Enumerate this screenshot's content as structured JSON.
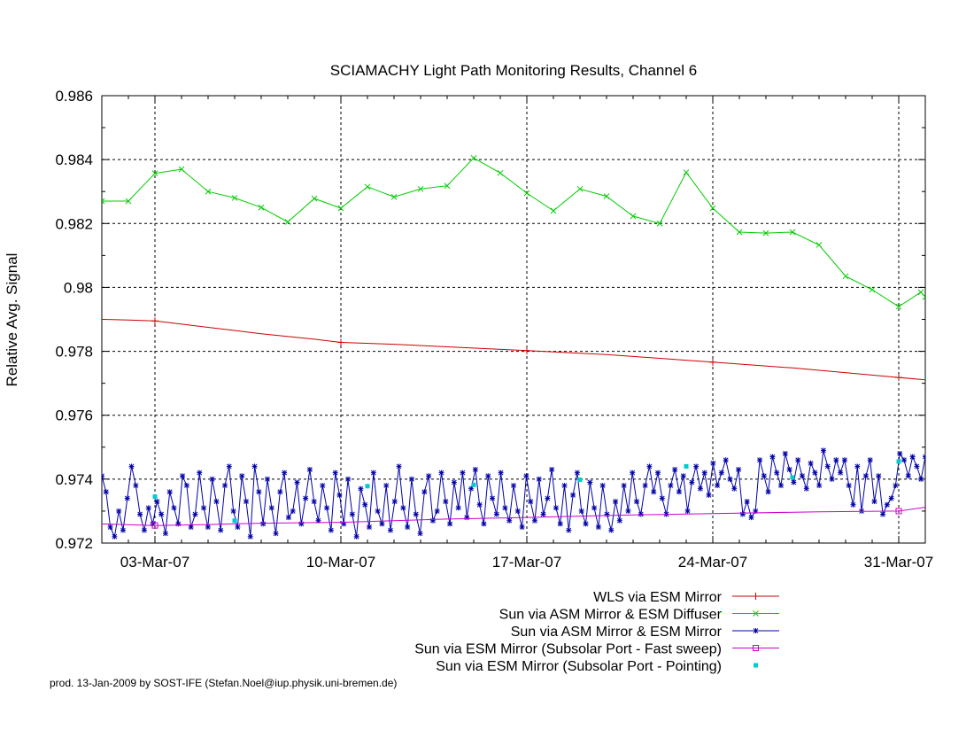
{
  "chart_data": {
    "type": "line",
    "title": "SCIAMACHY Light Path Monitoring Results, Channel 6",
    "xlabel": "",
    "ylabel": "Relative Avg. Signal",
    "xlim": [
      "2007-03-01",
      "2007-04-01"
    ],
    "ylim": [
      0.972,
      0.986
    ],
    "yticks": [
      "0.972",
      "0.974",
      "0.976",
      "0.978",
      "0.98",
      "0.982",
      "0.984",
      "0.986"
    ],
    "xticks": [
      {
        "date": "2007-03-03",
        "label": "03-Mar-07"
      },
      {
        "date": "2007-03-10",
        "label": "10-Mar-07"
      },
      {
        "date": "2007-03-17",
        "label": "17-Mar-07"
      },
      {
        "date": "2007-03-24",
        "label": "24-Mar-07"
      },
      {
        "date": "2007-03-31",
        "label": "31-Mar-07"
      }
    ],
    "grid": true,
    "legend_position": "bottom-right",
    "series": [
      {
        "name": "WLS via ESM Mirror",
        "color": "#cc0000",
        "marker": "plus",
        "points": [
          [
            "2007-03-01",
            0.979
          ],
          [
            "2007-03-02",
            0.97898
          ],
          [
            "2007-03-03",
            0.97895
          ],
          [
            "2007-03-05",
            0.97875
          ],
          [
            "2007-03-07",
            0.97855
          ],
          [
            "2007-03-09",
            0.97838
          ],
          [
            "2007-03-10",
            0.97828
          ],
          [
            "2007-03-12",
            0.97822
          ],
          [
            "2007-03-14",
            0.97814
          ],
          [
            "2007-03-17",
            0.97802
          ],
          [
            "2007-03-20",
            0.9779
          ],
          [
            "2007-03-24",
            0.97766
          ],
          [
            "2007-03-27",
            0.97748
          ],
          [
            "2007-03-31",
            0.97718
          ],
          [
            "2007-04-01",
            0.97711
          ]
        ],
        "marker_dates": [
          "2007-03-03",
          "2007-03-10",
          "2007-03-17",
          "2007-03-24",
          "2007-03-31"
        ]
      },
      {
        "name": "Sun via ASM Mirror & ESM Diffuser",
        "color": "#00cc00",
        "marker": "cross",
        "points": [
          [
            "2007-03-01",
            0.9827
          ],
          [
            "2007-03-02",
            0.9827
          ],
          [
            "2007-03-03",
            0.98357
          ],
          [
            "2007-03-04",
            0.9837
          ],
          [
            "2007-03-05",
            0.983
          ],
          [
            "2007-03-06",
            0.9828
          ],
          [
            "2007-03-07",
            0.9825
          ],
          [
            "2007-03-08",
            0.98205
          ],
          [
            "2007-03-09",
            0.98278
          ],
          [
            "2007-03-10",
            0.98248
          ],
          [
            "2007-03-11",
            0.98315
          ],
          [
            "2007-03-12",
            0.98283
          ],
          [
            "2007-03-13",
            0.98308
          ],
          [
            "2007-03-14",
            0.98318
          ],
          [
            "2007-03-15",
            0.98405
          ],
          [
            "2007-03-16",
            0.98358
          ],
          [
            "2007-03-17",
            0.98295
          ],
          [
            "2007-03-18",
            0.9824
          ],
          [
            "2007-03-19",
            0.98308
          ],
          [
            "2007-03-20",
            0.98285
          ],
          [
            "2007-03-21",
            0.98223
          ],
          [
            "2007-03-22",
            0.982
          ],
          [
            "2007-03-23",
            0.9836
          ],
          [
            "2007-03-24",
            0.98248
          ],
          [
            "2007-03-25",
            0.98173
          ],
          [
            "2007-03-26",
            0.9817
          ],
          [
            "2007-03-27",
            0.98173
          ],
          [
            "2007-03-28",
            0.98133
          ],
          [
            "2007-03-29",
            0.98035
          ],
          [
            "2007-03-30",
            0.97993
          ],
          [
            "2007-03-31",
            0.9794
          ],
          [
            "2007-03-31T20:00",
            0.97985
          ],
          [
            "2007-04-01",
            0.9797
          ]
        ]
      },
      {
        "name": "Sun via ASM Mirror & ESM Mirror",
        "color": "#0000aa",
        "marker": "star",
        "x_start": "2007-03-01",
        "x_end": "2007-04-01",
        "values": [
          0.9741,
          0.9736,
          0.9725,
          0.9722,
          0.973,
          0.9724,
          0.9734,
          0.9744,
          0.9738,
          0.9729,
          0.9724,
          0.9731,
          0.9726,
          0.9733,
          0.9729,
          0.9723,
          0.9736,
          0.9731,
          0.9726,
          0.9741,
          0.9738,
          0.9725,
          0.9729,
          0.9742,
          0.9731,
          0.9725,
          0.974,
          0.9733,
          0.9724,
          0.9738,
          0.9744,
          0.973,
          0.9725,
          0.9741,
          0.9733,
          0.9722,
          0.9744,
          0.9736,
          0.9726,
          0.974,
          0.9731,
          0.9723,
          0.9736,
          0.9742,
          0.9728,
          0.973,
          0.9739,
          0.9726,
          0.9734,
          0.9743,
          0.9733,
          0.9727,
          0.9738,
          0.9731,
          0.9724,
          0.9742,
          0.9735,
          0.9726,
          0.974,
          0.9729,
          0.9722,
          0.9737,
          0.9732,
          0.9725,
          0.9742,
          0.973,
          0.9726,
          0.9738,
          0.9724,
          0.9733,
          0.9744,
          0.9731,
          0.9725,
          0.974,
          0.9729,
          0.9723,
          0.9736,
          0.9741,
          0.9727,
          0.973,
          0.9742,
          0.9733,
          0.9726,
          0.9739,
          0.9731,
          0.9742,
          0.9728,
          0.9737,
          0.9743,
          0.9732,
          0.9726,
          0.9741,
          0.9734,
          0.9729,
          0.9742,
          0.9731,
          0.9727,
          0.9738,
          0.973,
          0.9725,
          0.9741,
          0.9733,
          0.9727,
          0.974,
          0.9729,
          0.9734,
          0.9743,
          0.9731,
          0.9726,
          0.9738,
          0.9724,
          0.9735,
          0.9742,
          0.973,
          0.9726,
          0.9739,
          0.9731,
          0.9725,
          0.9738,
          0.9729,
          0.9724,
          0.9733,
          0.9727,
          0.9738,
          0.973,
          0.9742,
          0.9733,
          0.9729,
          0.9738,
          0.9744,
          0.9736,
          0.9742,
          0.9734,
          0.9729,
          0.9738,
          0.9743,
          0.9736,
          0.9741,
          0.973,
          0.9739,
          0.9744,
          0.9737,
          0.9742,
          0.9735,
          0.9745,
          0.9738,
          0.9742,
          0.9746,
          0.974,
          0.9737,
          0.9743,
          0.9729,
          0.9733,
          0.9728,
          0.973,
          0.9746,
          0.9741,
          0.9736,
          0.9747,
          0.9742,
          0.9738,
          0.9748,
          0.9743,
          0.9739,
          0.9746,
          0.9741,
          0.9737,
          0.9745,
          0.9742,
          0.9738,
          0.9749,
          0.9744,
          0.974,
          0.9746,
          0.9742,
          0.9746,
          0.9738,
          0.9732,
          0.9744,
          0.973,
          0.9741,
          0.9746,
          0.9733,
          0.9741,
          0.9729,
          0.9732,
          0.9734,
          0.9738,
          0.9748,
          0.9746,
          0.9741,
          0.9747,
          0.9744,
          0.974,
          0.9747
        ]
      },
      {
        "name": "Sun via ESM Mirror (Subsolar Port - Fast sweep)",
        "color": "#cc00cc",
        "marker": "square",
        "points": [
          [
            "2007-03-01",
            0.9726
          ],
          [
            "2007-03-03",
            0.97255
          ],
          [
            "2007-03-05",
            0.97258
          ],
          [
            "2007-03-07",
            0.97262
          ],
          [
            "2007-03-10",
            0.97265
          ],
          [
            "2007-03-14",
            0.97275
          ],
          [
            "2007-03-17",
            0.9728
          ],
          [
            "2007-03-21",
            0.97288
          ],
          [
            "2007-03-24",
            0.97292
          ],
          [
            "2007-03-28",
            0.97298
          ],
          [
            "2007-03-31",
            0.973
          ],
          [
            "2007-04-01",
            0.97312
          ]
        ],
        "marker_dates": [
          "2007-03-03",
          "2007-03-31"
        ]
      },
      {
        "name": "Sun via ESM Mirror (Subsolar Port - Pointing)",
        "color": "#00cccc",
        "marker": "dot",
        "points": [
          [
            "2007-03-03",
            0.97345
          ],
          [
            "2007-03-06",
            0.9727
          ],
          [
            "2007-03-11",
            0.97378
          ],
          [
            "2007-03-15",
            0.97382
          ],
          [
            "2007-03-19",
            0.97398
          ],
          [
            "2007-03-23",
            0.9744
          ],
          [
            "2007-03-27",
            0.97405
          ],
          [
            "2007-03-31",
            0.97455
          ]
        ]
      }
    ],
    "credit": "prod. 13-Jan-2009 by SOST-IFE (Stefan.Noel@iup.physik.uni-bremen.de)"
  }
}
